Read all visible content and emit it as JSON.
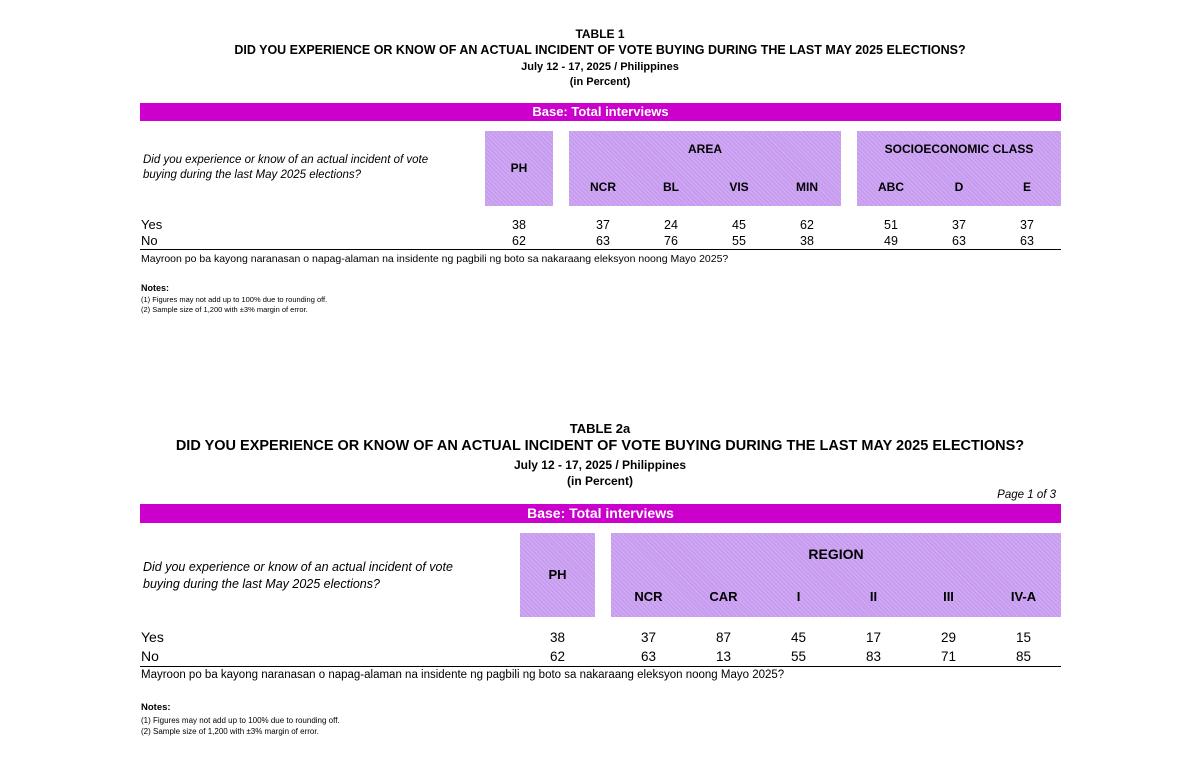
{
  "table1": {
    "title": "TABLE 1",
    "question": "DID YOU EXPERIENCE OR KNOW OF AN ACTUAL INCIDENT OF VOTE BUYING DURING THE LAST MAY 2025 ELECTIONS?",
    "period": "July 12 - 17, 2025 / Philippines",
    "unit": "(in Percent)",
    "base": "Base: Total interviews",
    "row_question": "Did you experience or know of an actual incident of vote buying during the last May 2025 elections?",
    "ph_label": "PH",
    "group1_label": "AREA",
    "group1_cols": [
      "NCR",
      "BL",
      "VIS",
      "MIN"
    ],
    "group2_label": "SOCIOECONOMIC CLASS",
    "group2_cols": [
      "ABC",
      "D",
      "E"
    ],
    "rows": [
      {
        "label": "Yes",
        "ph": "38",
        "g1": [
          "37",
          "24",
          "45",
          "62"
        ],
        "g2": [
          "51",
          "37",
          "37"
        ]
      },
      {
        "label": "No",
        "ph": "62",
        "g1": [
          "63",
          "76",
          "55",
          "38"
        ],
        "g2": [
          "49",
          "63",
          "63"
        ]
      }
    ],
    "tagalog": "Mayroon po ba kayong naranasan o napag-alaman na insidente ng pagbili ng boto sa nakaraang eleksyon noong Mayo 2025?",
    "notes_title": "Notes:",
    "notes": [
      "(1) Figures may not add up to 100% due to rounding off.",
      "(2) Sample size of 1,200 with ±3% margin of error."
    ]
  },
  "table2": {
    "title": "TABLE 2a",
    "question": "DID YOU EXPERIENCE OR KNOW OF AN ACTUAL INCIDENT OF VOTE BUYING DURING THE LAST MAY 2025 ELECTIONS?",
    "period": "July 12 - 17, 2025 / Philippines",
    "unit": "(in Percent)",
    "page": "Page 1 of 3",
    "base": "Base: Total interviews",
    "row_question": "Did you experience or know of an actual incident of vote buying during the last May 2025 elections?",
    "ph_label": "PH",
    "group_label": "REGION",
    "group_cols": [
      "NCR",
      "CAR",
      "I",
      "II",
      "III",
      "IV-A"
    ],
    "rows": [
      {
        "label": "Yes",
        "ph": "38",
        "g": [
          "37",
          "87",
          "45",
          "17",
          "29",
          "15"
        ]
      },
      {
        "label": "No",
        "ph": "62",
        "g": [
          "63",
          "13",
          "55",
          "83",
          "71",
          "85"
        ]
      }
    ],
    "tagalog": "Mayroon po ba kayong naranasan o napag-alaman na insidente ng pagbili ng boto sa nakaraang eleksyon noong Mayo 2025?",
    "notes_title": "Notes:",
    "notes": [
      "(1) Figures may not add up to 100% due to rounding off.",
      "(2) Sample size of 1,200 with ±3% margin of error."
    ]
  }
}
